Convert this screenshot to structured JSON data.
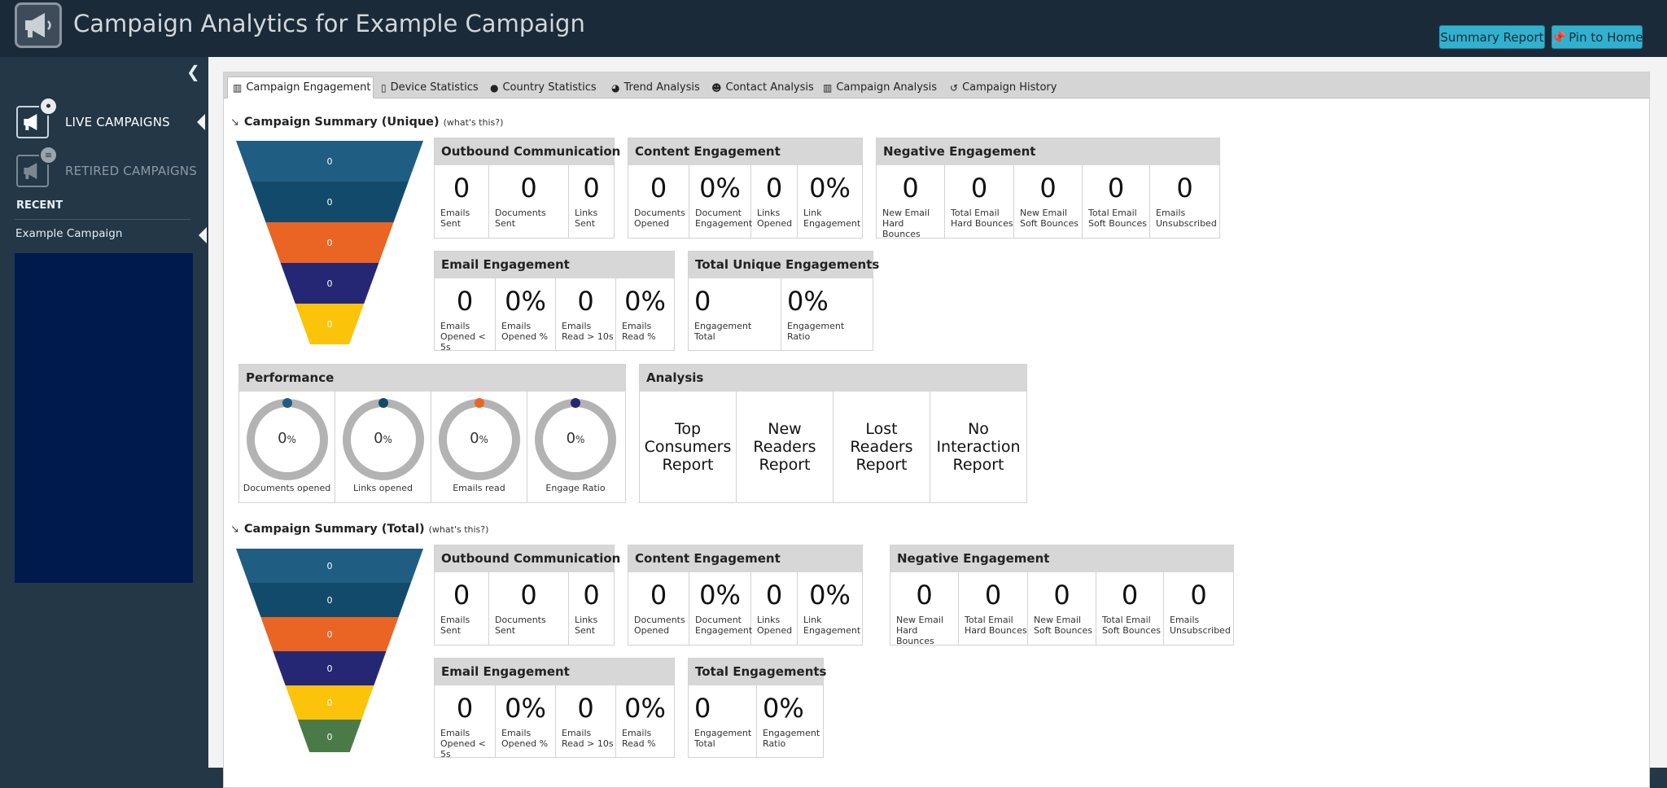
{
  "header": {
    "title": "Campaign Analytics for Example Campaign",
    "summary_report": "Summary Report",
    "pin_to_home": "Pin to Home"
  },
  "sidebar": {
    "live_campaigns": "LIVE CAMPAIGNS",
    "retired_campaigns": "RETIRED CAMPAIGNS",
    "recent_heading": "RECENT",
    "recent_item": "Example Campaign"
  },
  "tabs": [
    {
      "label": "Campaign Engagement",
      "icon": "bar-chart-icon"
    },
    {
      "label": "Device Statistics",
      "icon": "mobile-icon"
    },
    {
      "label": "Country Statistics",
      "icon": "globe-icon"
    },
    {
      "label": "Trend Analysis",
      "icon": "pie-chart-icon"
    },
    {
      "label": "Contact Analysis",
      "icon": "user-icon"
    },
    {
      "label": "Campaign Analysis",
      "icon": "bar-chart-icon"
    },
    {
      "label": "Campaign History",
      "icon": "history-icon"
    }
  ],
  "unique": {
    "title": "Campaign Summary (Unique)",
    "help": "(what's this?)",
    "funnel": [
      "0",
      "0",
      "0",
      "0",
      "0"
    ],
    "outbound": {
      "title": "Outbound Communication",
      "cells": [
        {
          "value": "0",
          "label": "Emails\nSent"
        },
        {
          "value": "0",
          "label": "Documents\nSent"
        },
        {
          "value": "0",
          "label": "Links\nSent"
        }
      ]
    },
    "content": {
      "title": "Content Engagement",
      "cells": [
        {
          "value": "0",
          "label": "Documents\nOpened"
        },
        {
          "value": "0%",
          "label": "Document\nEngagement"
        },
        {
          "value": "0",
          "label": "Links\nOpened"
        },
        {
          "value": "0%",
          "label": "Link\nEngagement"
        }
      ]
    },
    "negative": {
      "title": "Negative Engagement",
      "cells": [
        {
          "value": "0",
          "label": "New Email\nHard Bounces"
        },
        {
          "value": "0",
          "label": "Total Email\nHard Bounces"
        },
        {
          "value": "0",
          "label": "New Email\nSoft Bounces"
        },
        {
          "value": "0",
          "label": "Total Email\nSoft Bounces"
        },
        {
          "value": "0",
          "label": "Emails\nUnsubscribed"
        }
      ]
    },
    "email": {
      "title": "Email Engagement",
      "cells": [
        {
          "value": "0",
          "label": "Emails\nOpened < 5s"
        },
        {
          "value": "0%",
          "label": "Emails\nOpened %"
        },
        {
          "value": "0",
          "label": "Emails\nRead > 10s"
        },
        {
          "value": "0%",
          "label": "Emails\nRead %"
        }
      ]
    },
    "total": {
      "title": "Total Unique Engagements",
      "cells": [
        {
          "value": "0",
          "label": "Engagement\nTotal"
        },
        {
          "value": "0%",
          "label": "Engagement\nRatio"
        }
      ]
    },
    "performance": {
      "title": "Performance",
      "gauges": [
        {
          "value": "0",
          "unit": "%",
          "label": "Documents opened",
          "color": "#1f5d82"
        },
        {
          "value": "0",
          "unit": "%",
          "label": "Links opened",
          "color": "#124a6c"
        },
        {
          "value": "0",
          "unit": "%",
          "label": "Emails read",
          "color": "#ea6424"
        },
        {
          "value": "0",
          "unit": "%",
          "label": "Engage Ratio",
          "color": "#252775"
        }
      ]
    },
    "analysis": {
      "title": "Analysis",
      "reports": [
        "Top\nConsumers\nReport",
        "New\nReaders\nReport",
        "Lost\nReaders\nReport",
        "No\nInteraction\nReport"
      ]
    }
  },
  "total": {
    "title": "Campaign Summary (Total)",
    "help": "(what's this?)",
    "funnel": [
      "0",
      "0",
      "0",
      "0",
      "0",
      "0"
    ],
    "outbound": {
      "title": "Outbound Communication",
      "cells": [
        {
          "value": "0",
          "label": "Emails\nSent"
        },
        {
          "value": "0",
          "label": "Documents\nSent"
        },
        {
          "value": "0",
          "label": "Links\nSent"
        }
      ]
    },
    "content": {
      "title": "Content Engagement",
      "cells": [
        {
          "value": "0",
          "label": "Documents\nOpened"
        },
        {
          "value": "0%",
          "label": "Document\nEngagement"
        },
        {
          "value": "0",
          "label": "Links\nOpened"
        },
        {
          "value": "0%",
          "label": "Link\nEngagement"
        }
      ]
    },
    "negative": {
      "title": "Negative Engagement",
      "cells": [
        {
          "value": "0",
          "label": "New Email\nHard Bounces"
        },
        {
          "value": "0",
          "label": "Total Email\nHard Bounces"
        },
        {
          "value": "0",
          "label": "New Email\nSoft Bounces"
        },
        {
          "value": "0",
          "label": "Total Email\nSoft Bounces"
        },
        {
          "value": "0",
          "label": "Emails\nUnsubscribed"
        }
      ]
    },
    "email": {
      "title": "Email Engagement",
      "cells": [
        {
          "value": "0",
          "label": "Emails\nOpened < 5s"
        },
        {
          "value": "0%",
          "label": "Emails\nOpened %"
        },
        {
          "value": "0",
          "label": "Emails\nRead > 10s"
        },
        {
          "value": "0%",
          "label": "Emails\nRead %"
        }
      ]
    },
    "total": {
      "title": "Total Engagements",
      "cells": [
        {
          "value": "0",
          "label": "Engagement\nTotal"
        },
        {
          "value": "0%",
          "label": "Engagement\nRatio"
        }
      ]
    }
  },
  "colors": {
    "funnel": [
      "#1f5d82",
      "#124a6c",
      "#ea6424",
      "#252775",
      "#fcc30b",
      "#4a7a48"
    ]
  }
}
